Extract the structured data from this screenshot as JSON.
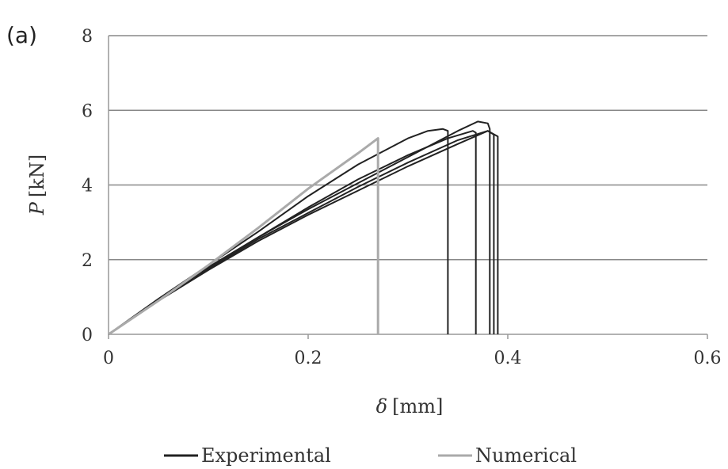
{
  "panel_label": "(a)",
  "chart_data": {
    "type": "line",
    "xlabel_symbol": "δ",
    "xlabel_unit": "[mm]",
    "ylabel_symbol": "P",
    "ylabel_unit": "[kN]",
    "xlim": [
      0,
      0.6
    ],
    "ylim": [
      0,
      8
    ],
    "x_ticks": [
      0,
      0.2,
      0.4,
      0.6
    ],
    "x_tick_labels": [
      "0",
      "0.2",
      "0.4",
      "0.6"
    ],
    "y_ticks": [
      0,
      2,
      4,
      6,
      8
    ],
    "y_tick_labels": [
      "0",
      "2",
      "4",
      "6",
      "8"
    ],
    "grid": "horizontal",
    "legend_position": "bottom",
    "legend": [
      {
        "label": "Experimental",
        "color": "#222222"
      },
      {
        "label": "Numerical",
        "color": "#aaaaaa"
      }
    ],
    "series": [
      {
        "group": "Experimental",
        "color": "#222222",
        "x": [
          0,
          0.05,
          0.1,
          0.15,
          0.2,
          0.25,
          0.3,
          0.32,
          0.335,
          0.34,
          0.34
        ],
        "y": [
          0,
          0.95,
          1.85,
          2.75,
          3.7,
          4.55,
          5.25,
          5.45,
          5.5,
          5.45,
          0
        ]
      },
      {
        "group": "Experimental",
        "color": "#222222",
        "x": [
          0,
          0.05,
          0.1,
          0.15,
          0.2,
          0.25,
          0.3,
          0.34,
          0.365,
          0.368,
          0.368
        ],
        "y": [
          0,
          0.93,
          1.8,
          2.6,
          3.4,
          4.15,
          4.8,
          5.25,
          5.45,
          5.4,
          0
        ]
      },
      {
        "group": "Experimental",
        "color": "#222222",
        "x": [
          0,
          0.05,
          0.1,
          0.15,
          0.2,
          0.25,
          0.3,
          0.35,
          0.37,
          0.38,
          0.382,
          0.382
        ],
        "y": [
          0,
          0.92,
          1.78,
          2.6,
          3.35,
          4.05,
          4.75,
          5.45,
          5.7,
          5.65,
          5.5,
          0
        ]
      },
      {
        "group": "Experimental",
        "color": "#222222",
        "x": [
          0,
          0.05,
          0.1,
          0.15,
          0.2,
          0.25,
          0.3,
          0.35,
          0.38,
          0.386,
          0.386
        ],
        "y": [
          0,
          0.9,
          1.75,
          2.55,
          3.25,
          3.95,
          4.6,
          5.2,
          5.45,
          5.35,
          0
        ]
      },
      {
        "group": "Experimental",
        "color": "#222222",
        "x": [
          0,
          0.05,
          0.1,
          0.15,
          0.2,
          0.25,
          0.3,
          0.35,
          0.38,
          0.39,
          0.39
        ],
        "y": [
          0,
          0.9,
          1.72,
          2.5,
          3.2,
          3.85,
          4.5,
          5.1,
          5.45,
          5.3,
          0
        ]
      },
      {
        "group": "Numerical",
        "color": "#aaaaaa",
        "x": [
          0,
          0.05,
          0.1,
          0.15,
          0.2,
          0.25,
          0.27,
          0.27
        ],
        "y": [
          0,
          0.9,
          1.85,
          2.85,
          3.9,
          4.85,
          5.25,
          0
        ]
      }
    ]
  }
}
